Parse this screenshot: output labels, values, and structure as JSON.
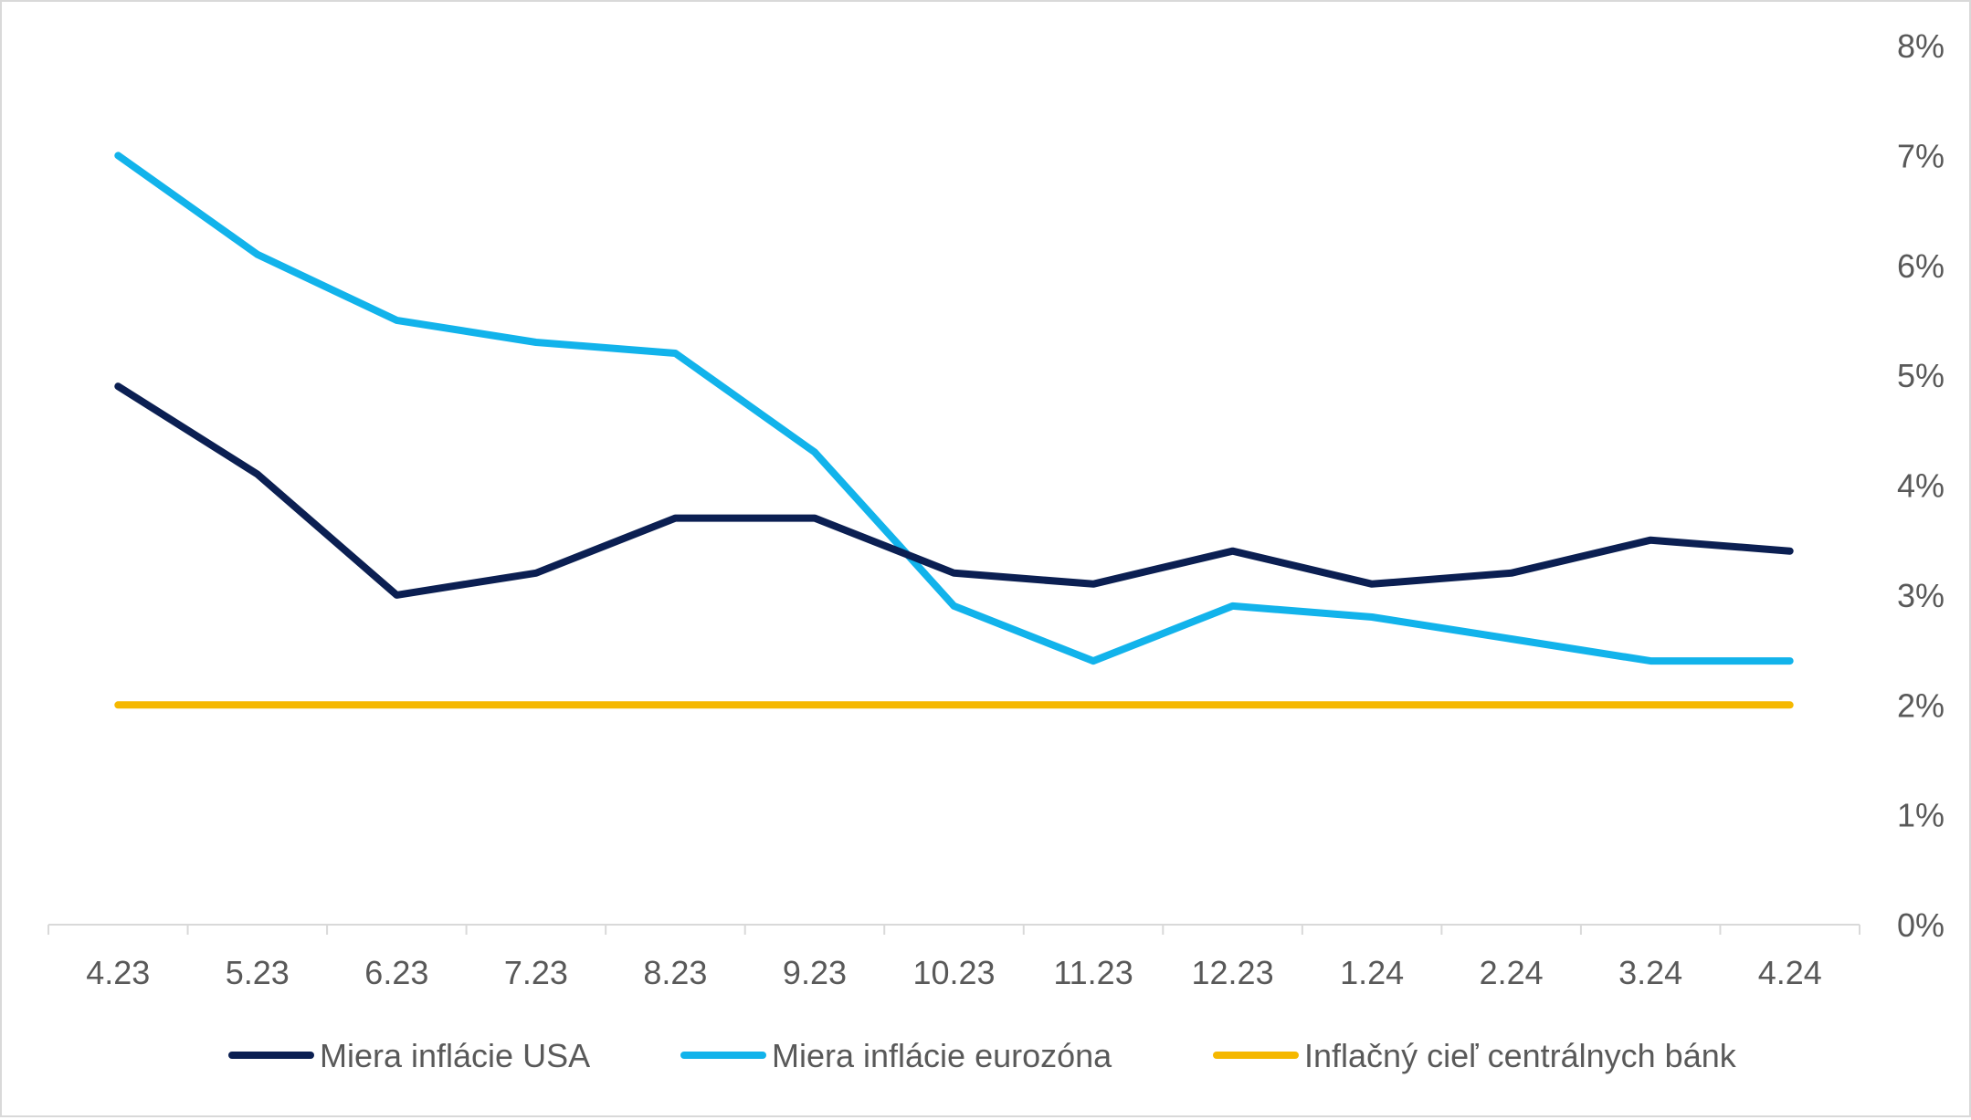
{
  "chart_data": {
    "type": "line",
    "title": "",
    "xlabel": "",
    "ylabel": "",
    "categories": [
      "4.23",
      "5.23",
      "6.23",
      "7.23",
      "8.23",
      "9.23",
      "10.23",
      "11.23",
      "12.23",
      "1.24",
      "2.24",
      "3.24",
      "4.24"
    ],
    "y_axis": {
      "position": "right",
      "min": 0,
      "max": 8,
      "tick_labels": [
        "0%",
        "1%",
        "2%",
        "3%",
        "4%",
        "5%",
        "6%",
        "7%",
        "8%"
      ]
    },
    "grid": false,
    "legend_position": "bottom",
    "series": [
      {
        "name": "Miera inflácie USA",
        "color": "#0b1f52",
        "values": [
          4.9,
          4.1,
          3.0,
          3.2,
          3.7,
          3.7,
          3.2,
          3.1,
          3.4,
          3.1,
          3.2,
          3.5,
          3.4
        ]
      },
      {
        "name": "Miera inflácie eurozóna",
        "color": "#12b3eb",
        "values": [
          7.0,
          6.1,
          5.5,
          5.3,
          5.2,
          4.3,
          2.9,
          2.4,
          2.9,
          2.8,
          2.6,
          2.4,
          2.4
        ]
      },
      {
        "name": "Inflačný cieľ centrálnych bánk",
        "color": "#f5b800",
        "values": [
          2,
          2,
          2,
          2,
          2,
          2,
          2,
          2,
          2,
          2,
          2,
          2,
          2
        ]
      }
    ]
  }
}
